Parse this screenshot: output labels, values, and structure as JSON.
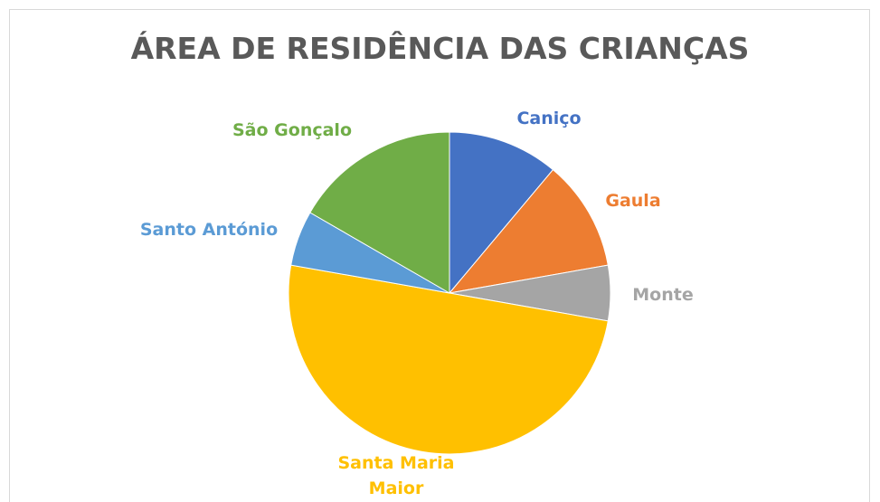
{
  "chart_data": {
    "type": "pie",
    "title": "ÁREA DE RESIDÊNCIA DAS CRIANÇAS",
    "categories": [
      "Caniço",
      "Gaula",
      "Monte",
      "Santa Maria Maior",
      "Santo António",
      "São Gonçalo"
    ],
    "values": [
      2,
      2,
      1,
      9,
      1,
      3
    ],
    "colors": [
      "#4472c4",
      "#ed7d31",
      "#a5a5a5",
      "#ffc000",
      "#5b9bd5",
      "#70ad47"
    ]
  }
}
